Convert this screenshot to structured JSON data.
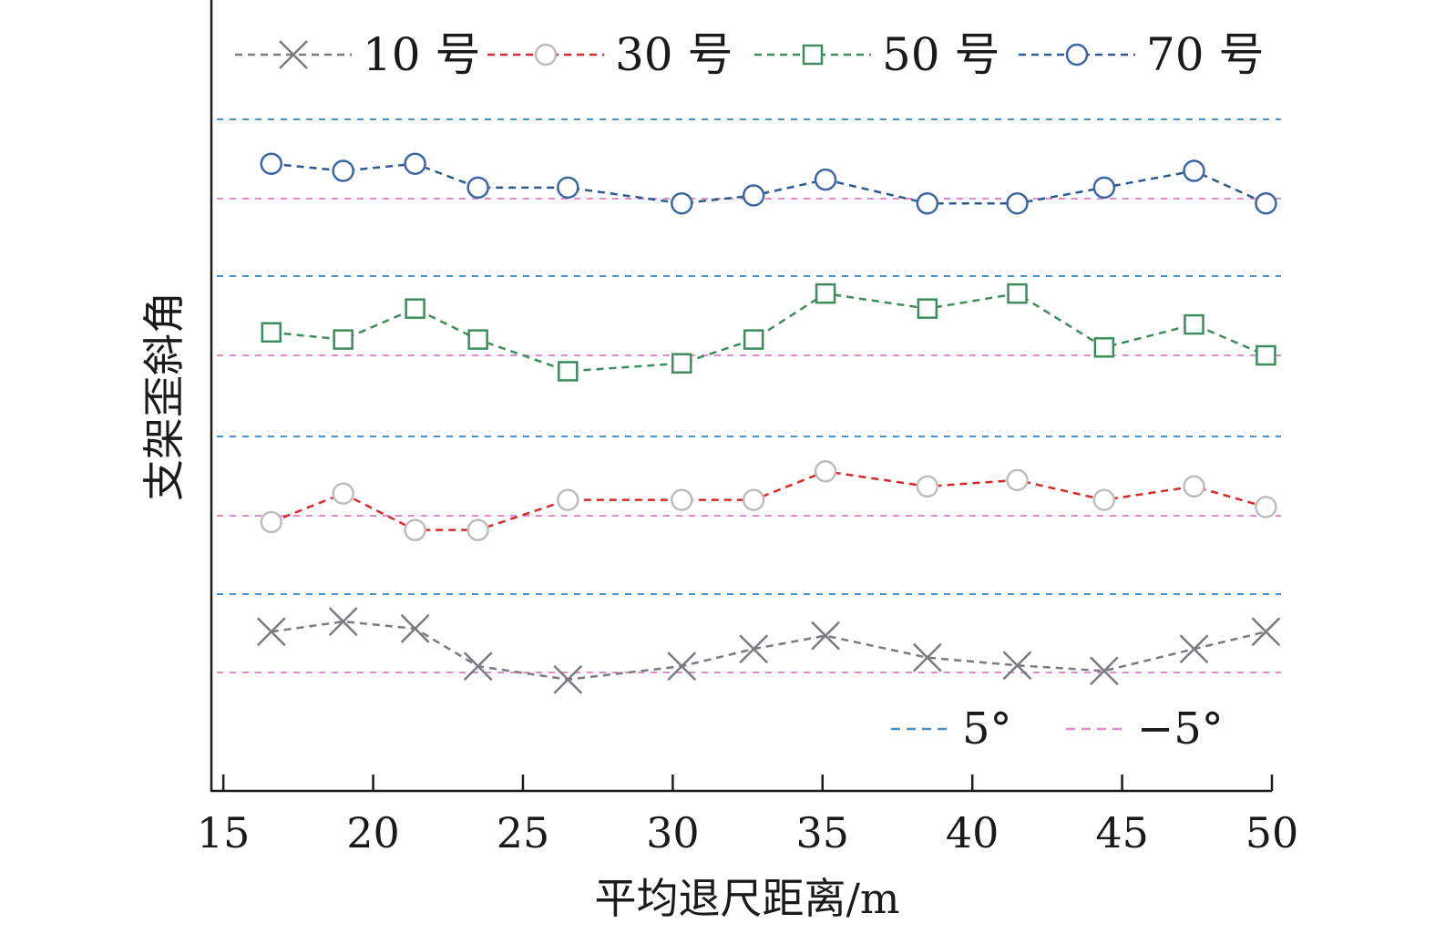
{
  "chart_data": {
    "type": "line",
    "title": "",
    "xlabel": "平均退尺距离/m",
    "ylabel": "支架歪斜角",
    "xlim": [
      14.6,
      50
    ],
    "xticks": [
      15,
      20,
      25,
      30,
      35,
      40,
      45,
      50
    ],
    "x": [
      16.6,
      19,
      21.4,
      23.5,
      26.5,
      30.3,
      32.7,
      35.1,
      38.5,
      41.5,
      44.4,
      47.4,
      49.8
    ],
    "grid": false,
    "legend_position": "top",
    "series": [
      {
        "name": "10 号",
        "color": "#7a7a80",
        "line_color": "#7a7a80",
        "marker": "x",
        "values": [
          0.2,
          1.5,
          0.6,
          -4.2,
          -5.9,
          -4.2,
          -2.0,
          -0.3,
          -3.1,
          -4.1,
          -4.8,
          -2.0,
          0.2
        ]
      },
      {
        "name": "30 号",
        "color": "#bdbdbd",
        "line_color": "#d62a2a",
        "marker": "circle",
        "values": [
          -5.8,
          -2.2,
          -6.8,
          -6.8,
          -3.0,
          -3.0,
          -3.0,
          0.6,
          -1.3,
          -0.5,
          -3.0,
          -1.3,
          -3.9
        ]
      },
      {
        "name": "50 号",
        "color": "#3c8c5c",
        "line_color": "#3c8c5c",
        "marker": "square",
        "values": [
          -2.1,
          -3.0,
          0.9,
          -3.0,
          -7.0,
          -6.0,
          -3.0,
          2.8,
          0.9,
          2.8,
          -4.0,
          -1.1,
          -5.0
        ]
      },
      {
        "name": "70 号",
        "color": "#3b66a5",
        "line_color": "#2c5a8e",
        "marker": "circle",
        "values": [
          -0.6,
          -1.5,
          -0.6,
          -3.6,
          -3.6,
          -5.6,
          -4.6,
          -2.6,
          -5.6,
          -5.6,
          -3.6,
          -1.5,
          -5.6
        ]
      }
    ],
    "reference_lines": [
      {
        "label": "5°",
        "value": 5,
        "color": "#4a90c4"
      },
      {
        "label": "−5°",
        "value": -5,
        "color": "#e08ccc"
      }
    ]
  }
}
